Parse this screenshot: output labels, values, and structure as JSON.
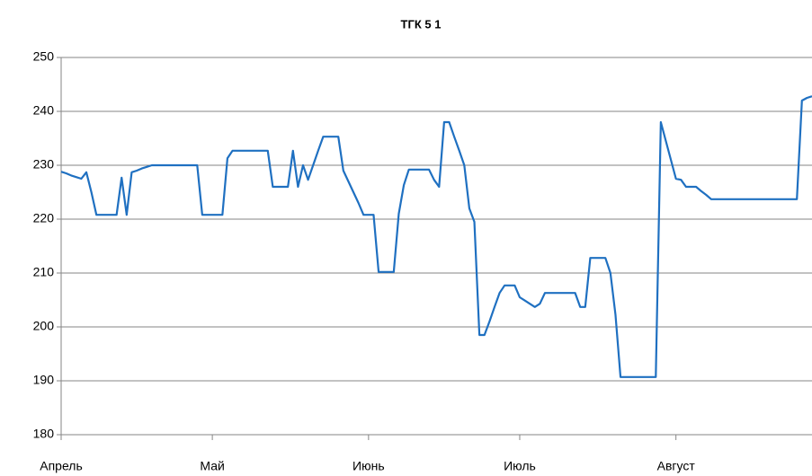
{
  "chart_data": {
    "type": "line",
    "title": "ТГК 5 1",
    "categories": [
      "Апрель",
      null,
      null,
      null,
      null,
      null,
      null,
      null,
      null,
      null,
      null,
      null,
      null,
      null,
      null,
      null,
      null,
      null,
      null,
      null,
      null,
      null,
      null,
      null,
      null,
      null,
      null,
      null,
      null,
      null,
      "Май",
      null,
      null,
      null,
      null,
      null,
      null,
      null,
      null,
      null,
      null,
      null,
      null,
      null,
      null,
      null,
      null,
      null,
      null,
      null,
      null,
      null,
      null,
      null,
      null,
      null,
      null,
      null,
      null,
      null,
      null,
      "Июнь",
      null,
      null,
      null,
      null,
      null,
      null,
      null,
      null,
      null,
      null,
      null,
      null,
      null,
      null,
      null,
      null,
      null,
      null,
      null,
      null,
      null,
      null,
      null,
      null,
      null,
      null,
      null,
      null,
      null,
      "Июль",
      null,
      null,
      null,
      null,
      null,
      null,
      null,
      null,
      null,
      null,
      null,
      null,
      null,
      null,
      null,
      null,
      null,
      null,
      null,
      null,
      null,
      null,
      null,
      null,
      null,
      null,
      null,
      null,
      null,
      null,
      "Август",
      null,
      null,
      null,
      null,
      null,
      null,
      null,
      null,
      null,
      null,
      null,
      null,
      null,
      null,
      null,
      null,
      null,
      null,
      null,
      null,
      null,
      null,
      null,
      null,
      null,
      null,
      null
    ],
    "values": [
      228.8,
      228.5,
      228.1,
      227.8,
      227.5,
      228.7,
      225,
      220.8,
      220.8,
      220.8,
      220.8,
      220.8,
      227.7,
      220.8,
      228.7,
      229,
      229.4,
      229.7,
      230,
      230,
      230,
      230,
      230,
      230,
      230,
      230,
      230,
      230,
      220.8,
      220.8,
      220.8,
      220.8,
      220.8,
      231.3,
      232.7,
      232.7,
      232.7,
      232.7,
      232.7,
      232.7,
      232.7,
      232.7,
      226,
      226,
      226,
      226,
      232.7,
      226,
      230,
      227.3,
      230,
      232.7,
      235.3,
      235.3,
      235.3,
      235.3,
      229,
      227,
      225,
      223,
      220.8,
      220.8,
      220.8,
      210.2,
      210.2,
      210.2,
      210.2,
      221,
      226.3,
      229.2,
      229.2,
      229.2,
      229.2,
      229.2,
      227.3,
      226,
      238,
      238,
      235.3,
      232.7,
      230,
      222,
      219.5,
      198.5,
      198.5,
      201,
      203.7,
      206.3,
      207.7,
      207.7,
      207.7,
      205.5,
      204.9,
      204.3,
      203.7,
      204.3,
      206.3,
      206.3,
      206.3,
      206.3,
      206.3,
      206.3,
      206.3,
      203.7,
      203.7,
      212.8,
      212.8,
      212.8,
      212.8,
      210,
      202.3,
      190.7,
      190.7,
      190.7,
      190.7,
      190.7,
      190.7,
      190.7,
      190.7,
      238,
      234.5,
      231,
      227.5,
      227.3,
      226,
      226,
      226,
      225.2,
      224.5,
      223.7,
      223.7,
      223.7,
      223.7,
      223.7,
      223.7,
      223.7,
      223.7,
      223.7,
      223.7,
      223.7,
      223.7,
      223.7,
      223.7,
      223.7,
      223.7,
      223.7,
      223.7,
      242,
      242.5,
      242.8
    ],
    "color": "#1f70c1",
    "ylim": [
      180,
      250
    ],
    "yticks": [
      180,
      190,
      200,
      210,
      220,
      230,
      240,
      250
    ],
    "grid": true
  }
}
